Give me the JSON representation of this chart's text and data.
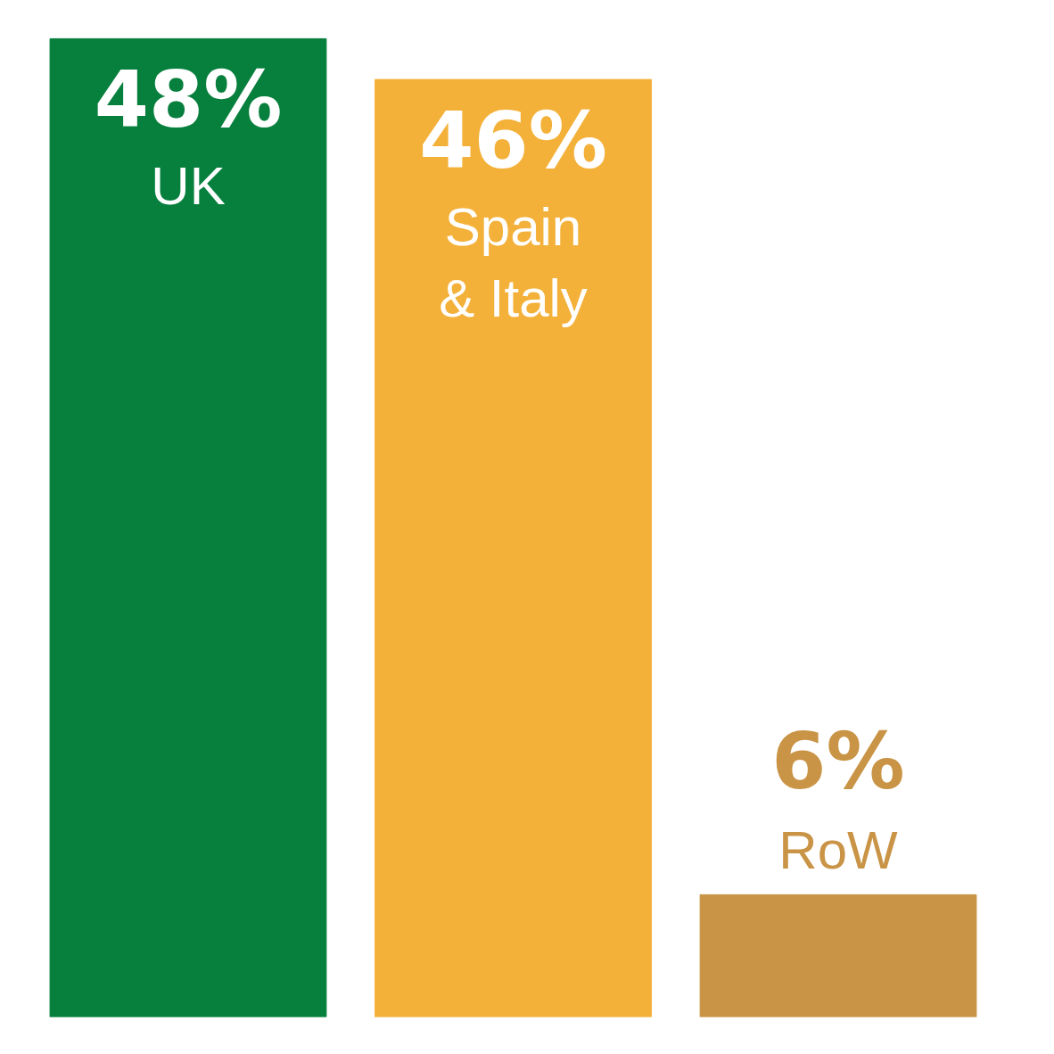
{
  "chart_data": {
    "type": "bar",
    "categories": [
      "UK",
      "Spain\n& Italy",
      "RoW"
    ],
    "values": [
      48,
      46,
      6
    ],
    "colors": [
      "#077f3d",
      "#f4b13a",
      "#c99446"
    ],
    "value_labels": [
      "48%",
      "46%",
      "6%"
    ]
  }
}
